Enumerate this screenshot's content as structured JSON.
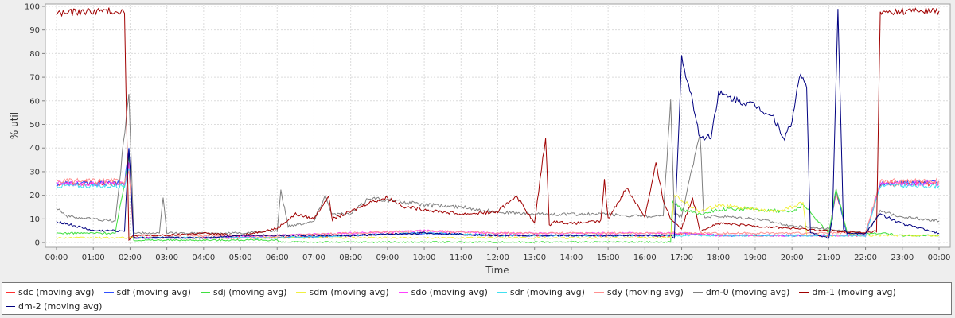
{
  "chart_data": {
    "type": "line",
    "title": "",
    "xlabel": "Time",
    "ylabel": "% util",
    "xlim": [
      0,
      24
    ],
    "ylim": [
      -2,
      101
    ],
    "grid": true,
    "legend_position": "bottom",
    "x_ticks": [
      "00:00",
      "01:00",
      "02:00",
      "03:00",
      "04:00",
      "05:00",
      "06:00",
      "07:00",
      "08:00",
      "09:00",
      "10:00",
      "11:00",
      "12:00",
      "13:00",
      "14:00",
      "15:00",
      "16:00",
      "17:00",
      "18:00",
      "19:00",
      "20:00",
      "21:00",
      "22:00",
      "23:00",
      "00:00"
    ],
    "y_ticks": [
      0,
      10,
      20,
      30,
      40,
      50,
      60,
      70,
      80,
      90,
      100
    ],
    "series": [
      {
        "name": "sdc (moving avg)",
        "color": "#ff3030",
        "x": [
          0,
          1.85,
          1.97,
          2.1,
          3,
          6,
          8,
          10,
          12,
          14,
          16,
          16.7,
          17,
          18,
          20,
          21,
          21.2,
          21.5,
          22,
          22.4,
          23,
          24
        ],
        "y": [
          25,
          25,
          34,
          2,
          2,
          2,
          3,
          4,
          3,
          3,
          3,
          3,
          4,
          3,
          3,
          3,
          22,
          3,
          3,
          25,
          25,
          25
        ]
      },
      {
        "name": "sdf (moving avg)",
        "color": "#3050ff",
        "x": [
          0,
          1.85,
          1.97,
          2.1,
          3,
          6,
          8,
          10,
          12,
          14,
          16,
          16.7,
          17,
          18,
          20,
          21,
          21.2,
          21.5,
          22,
          22.4,
          23,
          24
        ],
        "y": [
          25,
          25,
          40,
          2,
          2,
          2,
          3,
          4,
          3,
          3,
          3,
          3,
          4,
          3,
          3,
          3,
          22,
          3,
          3,
          25,
          25,
          26
        ]
      },
      {
        "name": "sdj (moving avg)",
        "color": "#40e040",
        "x": [
          0,
          1.6,
          1.97,
          2.1,
          3,
          6,
          6.05,
          16.7,
          16.75,
          17,
          17.5,
          18,
          19,
          20,
          20.3,
          21,
          21.2,
          21.5,
          22,
          22.4,
          23,
          24
        ],
        "y": [
          4,
          4,
          36,
          1,
          1,
          1,
          0.2,
          0.2,
          18,
          14,
          12,
          14,
          14,
          13,
          16,
          4,
          23,
          4,
          4,
          4,
          3,
          3
        ]
      },
      {
        "name": "sdm (moving avg)",
        "color": "#f0f040",
        "x": [
          0,
          16.7,
          16.8,
          17,
          17.5,
          18,
          18.5,
          19,
          19.5,
          20,
          20.3,
          20.4,
          24
        ],
        "y": [
          2,
          2,
          20,
          18,
          13,
          16,
          15,
          14,
          13,
          15,
          17,
          3,
          3
        ]
      },
      {
        "name": "sdo (moving avg)",
        "color": "#ff40ff",
        "x": [
          0,
          1.85,
          1.97,
          2.1,
          4,
          6,
          8,
          10,
          12,
          14,
          16,
          17,
          18,
          20,
          21,
          22,
          22.4,
          23,
          24
        ],
        "y": [
          25,
          25,
          33,
          2,
          2,
          3,
          4,
          5,
          4,
          4,
          4,
          4,
          3,
          3,
          3,
          3,
          25,
          25,
          25
        ]
      },
      {
        "name": "sdr (moving avg)",
        "color": "#40e0f0",
        "x": [
          0,
          1.85,
          1.97,
          2.1,
          4,
          6,
          8,
          10,
          12,
          14,
          16,
          17,
          18,
          20,
          21,
          22,
          22.4,
          23,
          24
        ],
        "y": [
          24,
          24,
          32,
          2,
          2,
          2,
          3,
          4,
          3,
          3,
          3,
          3,
          3,
          3,
          3,
          3,
          24,
          24,
          24
        ]
      },
      {
        "name": "sdy (moving avg)",
        "color": "#ff9090",
        "x": [
          0,
          1.85,
          1.97,
          2.1,
          4,
          6,
          8,
          10,
          12,
          14,
          16,
          17,
          18,
          20,
          21,
          22,
          22.4,
          23,
          24
        ],
        "y": [
          26,
          26,
          30,
          3,
          3,
          3,
          4,
          5,
          4,
          4,
          4,
          4,
          4,
          4,
          4,
          4,
          26,
          26,
          26
        ]
      },
      {
        "name": "dm-0 (moving avg)",
        "color": "#808080",
        "x": [
          0,
          0.3,
          1,
          1.6,
          1.97,
          2.1,
          2.8,
          2.9,
          3,
          4,
          5,
          6,
          6.1,
          6.3,
          7,
          7.3,
          7.5,
          8,
          8.5,
          9,
          10,
          11,
          12,
          13,
          14,
          15,
          16,
          16.5,
          16.7,
          16.8,
          17,
          17.5,
          17.6,
          18,
          19,
          20,
          21,
          21.3,
          22,
          22.4,
          23,
          24
        ],
        "y": [
          15,
          11,
          10,
          9,
          64,
          4,
          4,
          19,
          4,
          4,
          4,
          5,
          22,
          7,
          9,
          20,
          12,
          12,
          19,
          18,
          16,
          15,
          13,
          12,
          12,
          12,
          11,
          11,
          60,
          12,
          11,
          47,
          11,
          11,
          10,
          7,
          6,
          5,
          4,
          13,
          11,
          9
        ]
      },
      {
        "name": "dm-1 (moving avg)",
        "color": "#a00000",
        "x": [
          0,
          1,
          1.85,
          1.97,
          2.1,
          3,
          4,
          5,
          6,
          6.5,
          7,
          7.4,
          7.5,
          8,
          8.5,
          9,
          9.5,
          10,
          11,
          12,
          12.5,
          13,
          13.3,
          13.4,
          13.5,
          14,
          14.8,
          14.9,
          15,
          15.5,
          16,
          16.3,
          16.5,
          16.7,
          17,
          17.3,
          17.5,
          18,
          19,
          20,
          21,
          22,
          22.3,
          22.4,
          23,
          24
        ],
        "y": [
          97,
          98,
          98,
          1,
          3,
          3,
          4,
          3,
          6,
          12,
          10,
          20,
          10,
          13,
          17,
          19,
          15,
          14,
          12,
          13,
          20,
          8,
          45,
          7,
          9,
          8,
          9,
          26,
          10,
          23,
          11,
          33,
          18,
          10,
          6,
          19,
          5,
          8,
          7,
          6,
          5,
          4,
          5,
          97,
          98,
          98
        ]
      },
      {
        "name": "dm-2 (moving avg)",
        "color": "#000080",
        "x": [
          0,
          1,
          1.85,
          1.97,
          2.1,
          3,
          4,
          5,
          6,
          8,
          10,
          12,
          14,
          16,
          16.7,
          16.8,
          17,
          17.3,
          17.5,
          17.8,
          18,
          18.5,
          19,
          19.5,
          19.8,
          20,
          20.2,
          20.4,
          20.5,
          21,
          21.1,
          21.25,
          21.4,
          21.5,
          22,
          22.4,
          23,
          24
        ],
        "y": [
          9,
          5,
          5,
          41,
          2,
          2,
          2,
          3,
          3,
          3,
          4,
          3,
          3,
          3,
          3,
          2,
          78,
          60,
          44,
          45,
          63,
          60,
          58,
          53,
          44,
          51,
          71,
          66,
          4,
          2,
          10,
          99,
          6,
          4,
          4,
          12,
          8,
          4
        ],
        "labels": []
      }
    ]
  }
}
